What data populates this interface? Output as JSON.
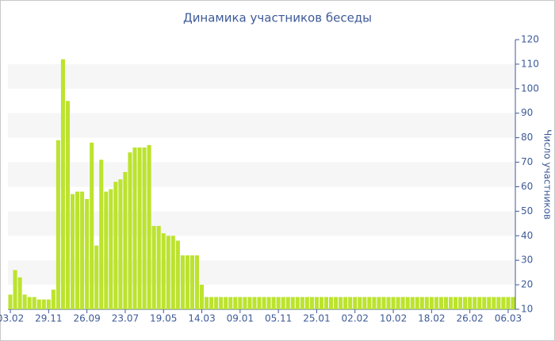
{
  "chart_data": {
    "type": "bar",
    "title": "Динамика участников беседы",
    "y_axis_label": "Число участников",
    "categories": [
      "03.02",
      null,
      null,
      null,
      null,
      null,
      null,
      null,
      "29.11",
      null,
      null,
      null,
      null,
      null,
      null,
      null,
      "26.09",
      null,
      null,
      null,
      null,
      null,
      null,
      null,
      "23.07",
      null,
      null,
      null,
      null,
      null,
      null,
      null,
      "19.05",
      null,
      null,
      null,
      null,
      null,
      null,
      null,
      "14.03",
      null,
      null,
      null,
      null,
      null,
      null,
      null,
      "09.01",
      null,
      null,
      null,
      null,
      null,
      null,
      null,
      "05.11",
      null,
      null,
      null,
      null,
      null,
      null,
      null,
      "25.01",
      null,
      null,
      null,
      null,
      null,
      null,
      null,
      "02.02",
      null,
      null,
      null,
      null,
      null,
      null,
      null,
      "10.02",
      null,
      null,
      null,
      null,
      null,
      null,
      null,
      "18.02",
      null,
      null,
      null,
      null,
      null,
      null,
      null,
      "26.02",
      null,
      null,
      null,
      null,
      null,
      null,
      null,
      "06.03",
      null
    ],
    "values": [
      16,
      26,
      23,
      16,
      15,
      15,
      14,
      14,
      14,
      18,
      79,
      112,
      95,
      57,
      58,
      58,
      55,
      78,
      36,
      71,
      58,
      59,
      62,
      63,
      66,
      74,
      76,
      76,
      76,
      77,
      44,
      44,
      41,
      40,
      40,
      38,
      32,
      32,
      32,
      32,
      20,
      15,
      15,
      15,
      15,
      15,
      15,
      15,
      15,
      15,
      15,
      15,
      15,
      15,
      15,
      15,
      15,
      15,
      15,
      15,
      15,
      15,
      15,
      15,
      15,
      15,
      15,
      15,
      15,
      15,
      15,
      15,
      15,
      15,
      15,
      15,
      15,
      15,
      15,
      15,
      15,
      15,
      15,
      15,
      15,
      15,
      15,
      15,
      15,
      15,
      15,
      15,
      15,
      15,
      15,
      15,
      15,
      15,
      15,
      15,
      15,
      15,
      15,
      15,
      15,
      15
    ],
    "color": "#bce32e",
    "ylim": [
      10,
      120
    ],
    "yticks": [
      10,
      20,
      30,
      40,
      50,
      60,
      70,
      80,
      90,
      100,
      110,
      120
    ],
    "grid": "banded",
    "y_axis_side": "right"
  }
}
